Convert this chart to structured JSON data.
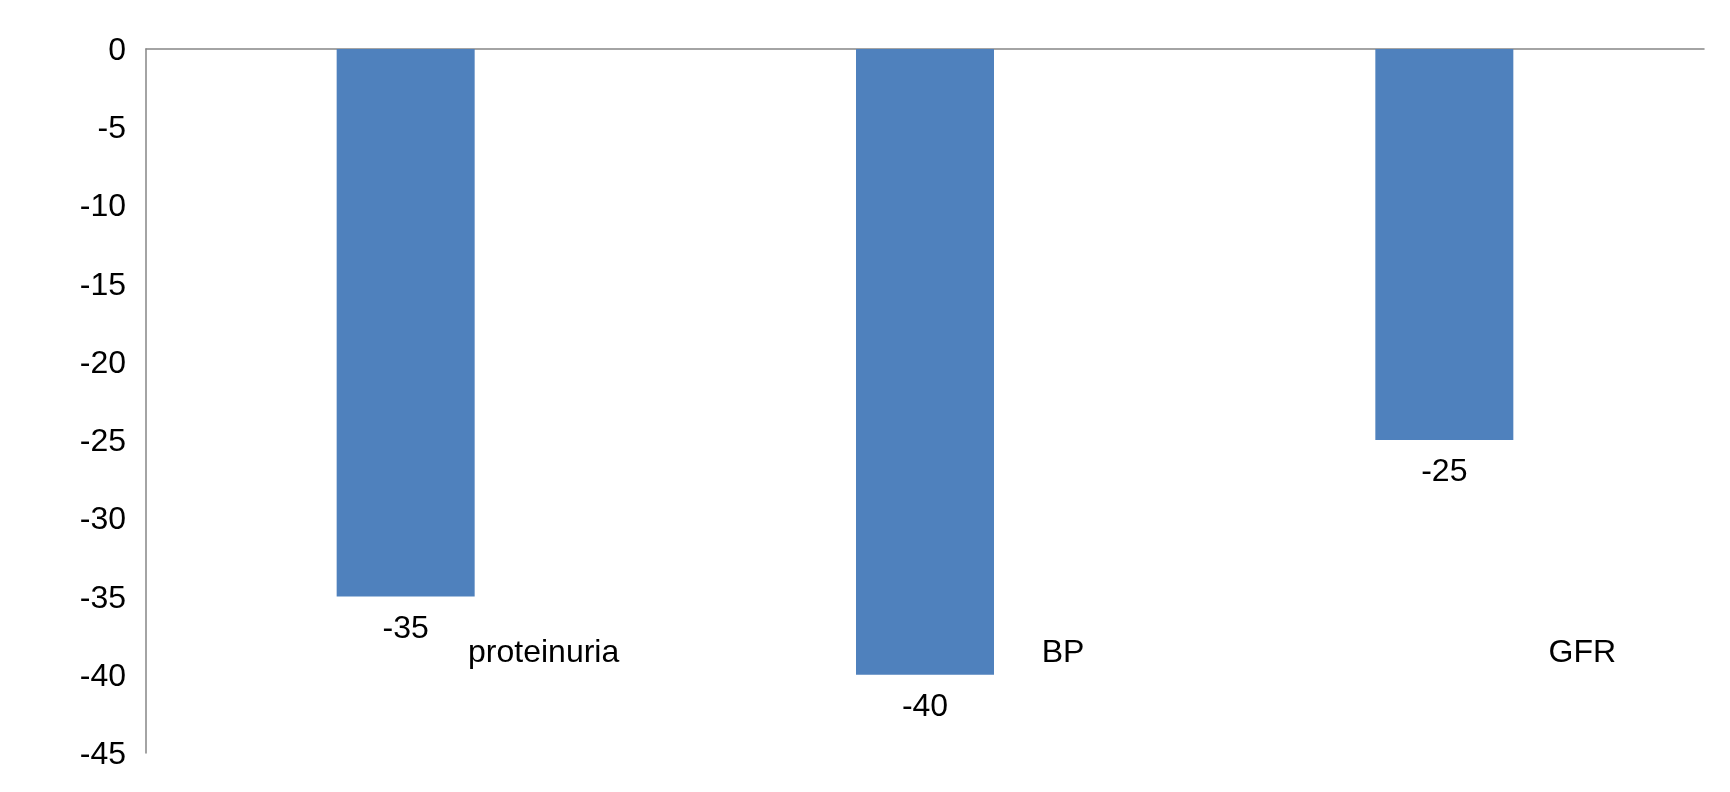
{
  "chart_data": {
    "type": "bar",
    "categories": [
      "proteinuria",
      "BP",
      "GFR"
    ],
    "values": [
      -35,
      -40,
      -25
    ],
    "color": "#4f81bd",
    "ylim": [
      -45,
      0
    ],
    "yticks": [
      -45,
      -40,
      -35,
      -30,
      -25,
      -20,
      -15,
      -10,
      -5,
      0
    ],
    "grid": false,
    "data_labels": true
  }
}
